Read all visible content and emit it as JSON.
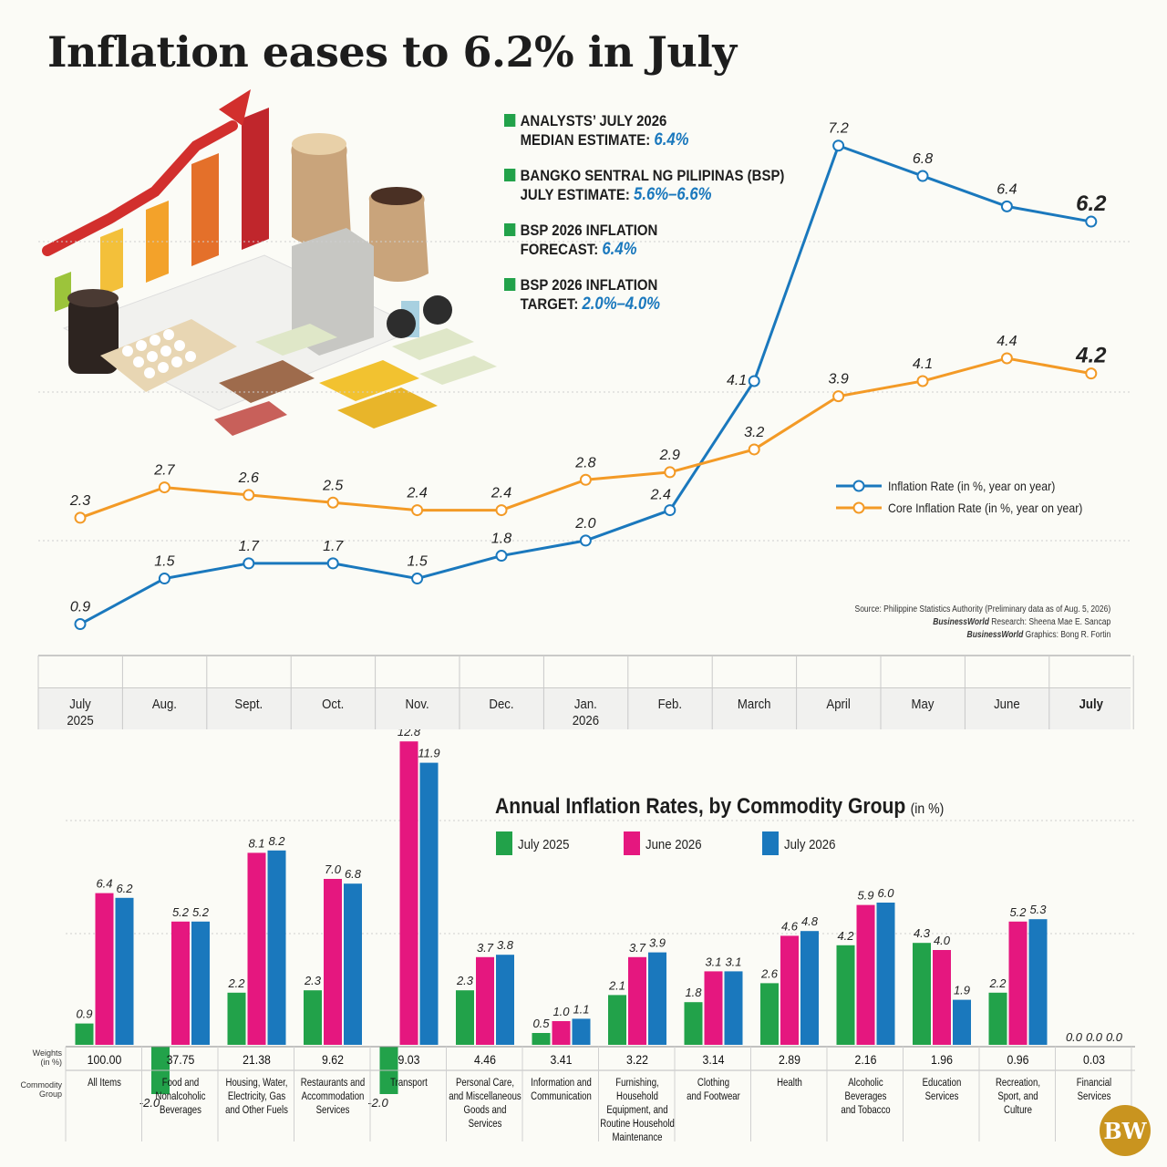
{
  "title": "Inflation eases to 6.2% in July",
  "notes": [
    {
      "line1": "ANALYSTS’ JULY 2026",
      "line2": "MEDIAN ESTIMATE:",
      "value": "6.4%"
    },
    {
      "line1": "BANGKO SENTRAL NG PILIPINAS (BSP)",
      "line2": "JULY ESTIMATE:",
      "value": "5.6%–6.6%"
    },
    {
      "line1": "BSP 2026 INFLATION",
      "line2": "FORECAST:",
      "value": "6.4%"
    },
    {
      "line1": "BSP 2026 INFLATION",
      "line2": "TARGET:",
      "value": "2.0%–4.0%"
    }
  ],
  "source": {
    "line1": "Source: Philippine Statistics Authority (Preliminary data as of Aug. 5, 2026)",
    "line2_em": "BusinessWorld",
    "line2": " Research: Sheena Mae E. Sancap",
    "line3_em": "BusinessWorld",
    "line3": " Graphics: Bong R. Fortin"
  },
  "logo_text": "BW",
  "colors": {
    "inflation": "#1a78bd",
    "core": "#f39a26",
    "green": "#22a24a",
    "pink": "#e5177f",
    "blue": "#1a78bd",
    "value_blue": "#1a78bd"
  },
  "chart_data": [
    {
      "type": "line",
      "categories": [
        "July 2025",
        "Aug.",
        "Sept.",
        "Oct.",
        "Nov.",
        "Dec.",
        "Jan. 2026",
        "Feb.",
        "March",
        "April",
        "May",
        "June",
        "July"
      ],
      "category_lines": [
        [
          "July",
          "2025"
        ],
        [
          "Aug."
        ],
        [
          "Sept."
        ],
        [
          "Oct."
        ],
        [
          "Nov."
        ],
        [
          "Dec."
        ],
        [
          "Jan.",
          "2026"
        ],
        [
          "Feb."
        ],
        [
          "March"
        ],
        [
          "April"
        ],
        [
          "May"
        ],
        [
          "June"
        ],
        [
          "July"
        ]
      ],
      "series": [
        {
          "name": "Inflation Rate (in %, year on year)",
          "values": [
            0.9,
            1.5,
            1.7,
            1.7,
            1.5,
            1.8,
            2.0,
            2.4,
            4.1,
            7.2,
            6.8,
            6.4,
            6.2
          ]
        },
        {
          "name": "Core Inflation Rate (in %, year on year)",
          "values": [
            2.3,
            2.7,
            2.6,
            2.5,
            2.4,
            2.4,
            2.8,
            2.9,
            3.2,
            3.9,
            4.1,
            4.4,
            4.2
          ]
        }
      ],
      "labels": {
        "inflation": [
          "0.9",
          "1.5",
          "1.7",
          "1.7",
          "1.5",
          "1.8",
          "2.0",
          "2.4",
          "4.1",
          "7.2",
          "6.8",
          "6.4",
          "6.2"
        ],
        "core": [
          "2.3",
          "2.7",
          "2.6",
          "2.5",
          "2.4",
          "2.4",
          "2.8",
          "2.9",
          "3.2",
          "3.9",
          "4.1",
          "4.4",
          "4.2"
        ]
      },
      "legend_position": "right",
      "grid": true
    },
    {
      "type": "bar",
      "title": "Annual Inflation Rates, by Commodity Group",
      "title_unit": "(in %)",
      "weights_label": [
        "Weights",
        "(in %)"
      ],
      "group_label": [
        "Commodity",
        "Group"
      ],
      "series": [
        {
          "name": "July 2025",
          "values": [
            0.9,
            -2.0,
            2.2,
            2.3,
            -2.0,
            2.3,
            0.5,
            2.1,
            1.8,
            2.6,
            4.2,
            4.3,
            2.2,
            0.0
          ]
        },
        {
          "name": "June 2026",
          "values": [
            6.4,
            5.2,
            8.1,
            7.0,
            12.8,
            3.7,
            1.0,
            3.7,
            3.1,
            4.6,
            5.9,
            4.0,
            5.2,
            0.0
          ]
        },
        {
          "name": "July 2026",
          "values": [
            6.2,
            5.2,
            8.2,
            6.8,
            11.9,
            3.8,
            1.1,
            3.9,
            3.1,
            4.8,
            6.0,
            1.9,
            5.3,
            0.0
          ]
        }
      ],
      "value_labels": [
        [
          "0.9",
          "-2.0",
          "2.2",
          "2.3",
          "-2.0",
          "2.3",
          "0.5",
          "2.1",
          "1.8",
          "2.6",
          "4.2",
          "4.3",
          "2.2",
          "0.0"
        ],
        [
          "6.4",
          "5.2",
          "8.1",
          "7.0",
          "12.8",
          "3.7",
          "1.0",
          "3.7",
          "3.1",
          "4.6",
          "5.9",
          "4.0",
          "5.2",
          "0.0"
        ],
        [
          "6.2",
          "5.2",
          "8.2",
          "6.8",
          "11.9",
          "3.8",
          "1.1",
          "3.9",
          "3.1",
          "4.8",
          "6.0",
          "1.9",
          "5.3",
          "0.0"
        ]
      ],
      "categories": [
        "All Items",
        "Food and Nonalcoholic Beverages",
        "Housing, Water, Electricity, Gas and Other Fuels",
        "Restaurants and Accommodation Services",
        "Transport",
        "Personal Care, and Miscellaneous Goods and Services",
        "Information and Communication",
        "Furnishing, Household Equipment, and Routine Household Maintenance",
        "Clothing and Footwear",
        "Health",
        "Alcoholic Beverages and Tobacco",
        "Education Services",
        "Recreation, Sport, and Culture",
        "Financial Services"
      ],
      "category_lines": [
        [
          "All Items"
        ],
        [
          "Food and",
          "Nonalcoholic",
          "Beverages"
        ],
        [
          "Housing, Water,",
          "Electricity, Gas",
          "and Other Fuels"
        ],
        [
          "Restaurants and",
          "Accommodation",
          "Services"
        ],
        [
          "Transport"
        ],
        [
          "Personal Care,",
          "and Miscellaneous",
          "Goods and",
          "Services"
        ],
        [
          "Information and",
          "Communication"
        ],
        [
          "Furnishing,",
          "Household",
          "Equipment, and",
          "Routine Household",
          "Maintenance"
        ],
        [
          "Clothing",
          "and Footwear"
        ],
        [
          "Health"
        ],
        [
          "Alcoholic",
          "Beverages",
          "and Tobacco"
        ],
        [
          "Education",
          "Services"
        ],
        [
          "Recreation,",
          "Sport, and",
          "Culture"
        ],
        [
          "Financial",
          "Services"
        ]
      ],
      "weights": [
        "100.00",
        "37.75",
        "21.38",
        "9.62",
        "9.03",
        "4.46",
        "3.41",
        "3.22",
        "3.14",
        "2.89",
        "2.16",
        "1.96",
        "0.96",
        "0.03"
      ],
      "legend_position": "top"
    }
  ]
}
